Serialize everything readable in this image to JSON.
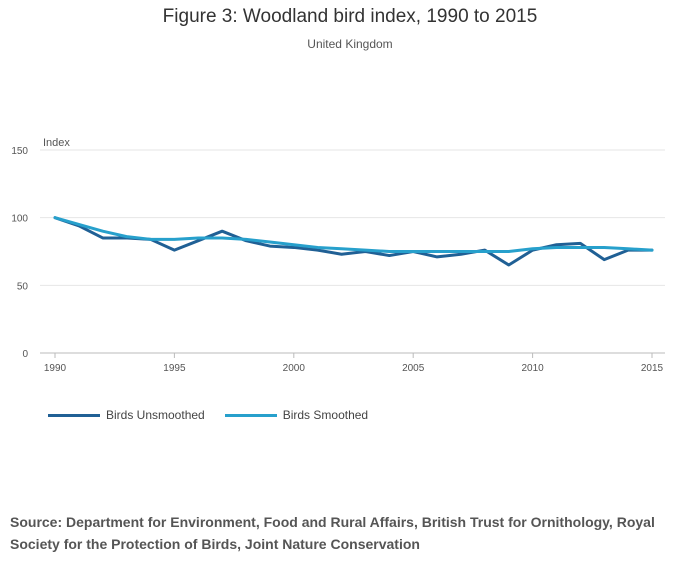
{
  "chart_data": {
    "type": "line",
    "title": "Figure 3: Woodland bird index, 1990 to 2015",
    "subtitle": "United Kingdom",
    "ylabel": "Index",
    "xlabel": "",
    "ylim": [
      0,
      150
    ],
    "xlim": [
      1990,
      2015
    ],
    "yticks": [
      "0",
      "50",
      "100",
      "150"
    ],
    "xticks": [
      "1990",
      "1995",
      "2000",
      "2005",
      "2010",
      "2015"
    ],
    "x": [
      1990,
      1991,
      1992,
      1993,
      1994,
      1995,
      1996,
      1997,
      1998,
      1999,
      2000,
      2001,
      2002,
      2003,
      2004,
      2005,
      2006,
      2007,
      2008,
      2009,
      2010,
      2011,
      2012,
      2013,
      2014,
      2015
    ],
    "series": [
      {
        "name": "Birds Unsmoothed",
        "color": "#206095",
        "values": [
          100,
          94,
          85,
          85,
          84,
          76,
          83,
          90,
          83,
          79,
          78,
          76,
          73,
          75,
          72,
          75,
          71,
          73,
          76,
          65,
          76,
          80,
          81,
          69,
          76,
          76
        ]
      },
      {
        "name": "Birds Smoothed",
        "color": "#27a0cc",
        "values": [
          100,
          95,
          90,
          86,
          84,
          84,
          85,
          85,
          84,
          82,
          80,
          78,
          77,
          76,
          75,
          75,
          75,
          75,
          75,
          75,
          77,
          78,
          78,
          78,
          77,
          76
        ]
      }
    ],
    "legend_position": "bottom-left"
  },
  "source": "Source: Department for Environment, Food and Rural Affairs, British Trust for Ornithology, Royal Society for the Protection of Birds, Joint Nature Conservation"
}
